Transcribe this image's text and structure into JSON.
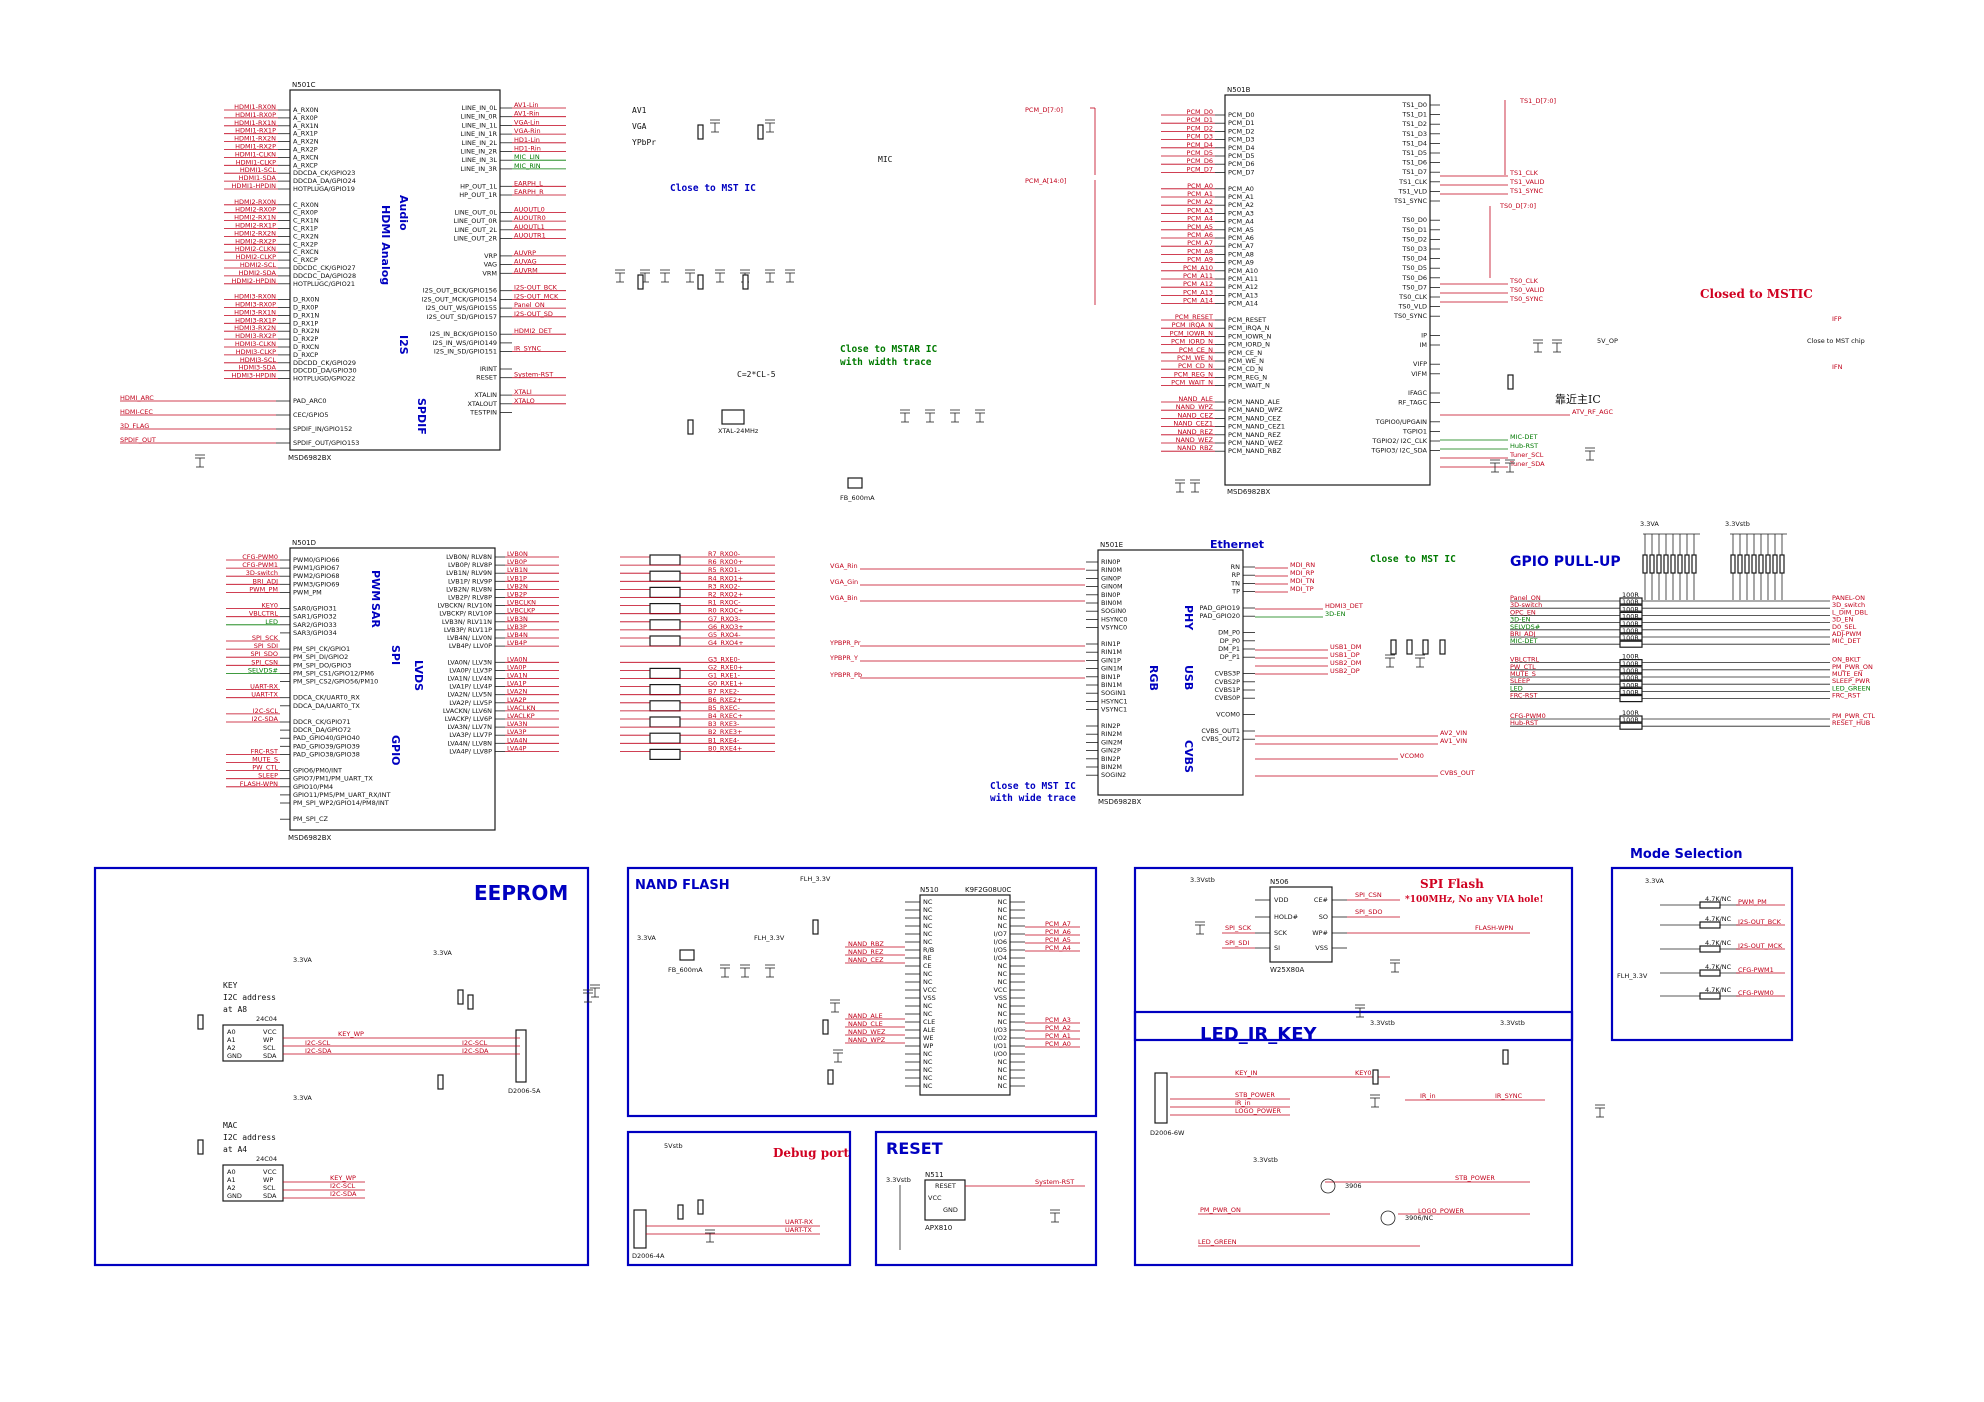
{
  "chips": {
    "n501c": {
      "ref": "N501C",
      "part": "MSD6982BX",
      "left_nets": [
        "HDMI1-RX0N",
        "HDMI1-RX0P",
        "HDMI1-RX1N",
        "HDMI1-RX1P",
        "HDMI1-RX2N",
        "HDMI1-RX2P",
        "HDMI1-CLKN",
        "HDMI1-CLKP",
        "HDMI1-SCL",
        "HDMI1-SDA",
        "HDMI1-HPDIN",
        "",
        "HDMI2-RX0N",
        "HDMI2-RX0P",
        "HDMI2-RX1N",
        "HDMI2-RX1P",
        "HDMI2-RX2N",
        "HDMI2-RX2P",
        "HDMI2-CLKN",
        "HDMI2-CLKP",
        "HDMI2-SCL",
        "HDMI2-SDA",
        "HDMI2-HPDIN",
        "",
        "HDMI3-RX0N",
        "HDMI3-RX0P",
        "HDMI3-RX1N",
        "HDMI3-RX1P",
        "HDMI3-RX2N",
        "HDMI3-RX2P",
        "HDMI3-CLKN",
        "HDMI3-CLKP",
        "HDMI3-SCL",
        "HDMI3-SDA",
        "HDMI3-HPDIN"
      ],
      "left_pins": [
        "A_RX0N",
        "A_RX0P",
        "A_RX1N",
        "A_RX1P",
        "A_RX2N",
        "A_RX2P",
        "A_RXCN",
        "A_RXCP",
        "DDCDA_CK/GPIO23",
        "DDCDA_DA/GPIO24",
        "HOTPLUGA/GPIO19",
        "",
        "C_RX0N",
        "C_RX0P",
        "C_RX1N",
        "C_RX1P",
        "C_RX2N",
        "C_RX2P",
        "C_RXCN",
        "C_RXCP",
        "DDCDC_CK/GPIO27",
        "DDCDC_DA/GPIO28",
        "HOTPLUGC/GPIO21",
        "",
        "D_RX0N",
        "D_RX0P",
        "D_RX1N",
        "D_RX1P",
        "D_RX2N",
        "D_RX2P",
        "D_RXCN",
        "D_RXCP",
        "DDCDD_CK/GPIO29",
        "DDCDD_DA/GPIO30",
        "HOTPLUGD/GPIO22"
      ],
      "bottom_pins": [
        "PAD_ARC0",
        "CEC/GPIO5",
        "SPDIF_IN/GPIO152",
        "SPDIF_OUT/GPIO153"
      ],
      "bottom_nets": [
        "HDMI_ARC",
        "HDMI-CEC",
        "3D_FLAG",
        "SPDIF_OUT"
      ],
      "right_pins": [
        "LINE_IN_0L",
        "LINE_IN_0R",
        "LINE_IN_1L",
        "LINE_IN_1R",
        "LINE_IN_2L",
        "LINE_IN_2R",
        "LINE_IN_3L",
        "LINE_IN_3R",
        "",
        "HP_OUT_1L",
        "HP_OUT_1R",
        "",
        "LINE_OUT_0L",
        "LINE_OUT_0R",
        "LINE_OUT_2L",
        "LINE_OUT_2R",
        "",
        "VRP",
        "VAG",
        "VRM",
        "",
        "I2S_OUT_BCK/GPIO156",
        "I2S_OUT_MCK/GPIO154",
        "I2S_OUT_WS/GPIO155",
        "I2S_OUT_SD/GPIO157",
        "",
        "I2S_IN_BCK/GPIO150",
        "I2S_IN_WS/GPIO149",
        "I2S_IN_SD/GPIO151",
        "",
        "IRINT",
        "RESET",
        "",
        "XTALIN",
        "XTALOUT",
        "TESTPIN"
      ],
      "right_nets": [
        "AV1-Lin",
        "AV1-Rin",
        "VGA-Lin",
        "VGA-Rin",
        "HD1-Lin",
        "HD1-Rin",
        "MIC_LIN",
        "MIC_RIN",
        "",
        "EARPH_L",
        "EARPH_R",
        "",
        "AUOUTL0",
        "AUOUTR0",
        "AUOUTL1",
        "AUOUTR1",
        "",
        "AUVRP",
        "AUVAG",
        "AUVRM",
        "",
        "I2S-OUT_BCK",
        "I2S-OUT_MCK",
        "Panel_ON",
        "I2S-OUT_SD",
        "",
        "HDMI2_DET",
        "",
        "IR_SYNC",
        "",
        "",
        "System-RST",
        "",
        "XTALI",
        "XTALO",
        ""
      ],
      "func_labels": [
        "HDMI Analog",
        "Audio",
        "I2S",
        "SPDIF"
      ],
      "side_notes": [
        "AV1",
        "VGA",
        "YPbPr",
        "MIC"
      ],
      "note": "Close to MST IC",
      "crystal_note": "C=2*CL-5",
      "crystal": "XTAL-24MHz",
      "bead": "FB_600mA"
    },
    "n501b": {
      "ref": "N501B",
      "part": "MSD6982BX",
      "left_pins": [
        "PCM_D0",
        "PCM_D1",
        "PCM_D2",
        "PCM_D3",
        "PCM_D4",
        "PCM_D5",
        "PCM_D6",
        "PCM_D7",
        "",
        "PCM_A0",
        "PCM_A1",
        "PCM_A2",
        "PCM_A3",
        "PCM_A4",
        "PCM_A5",
        "PCM_A6",
        "PCM_A7",
        "PCM_A8",
        "PCM_A9",
        "PCM_A10",
        "PCM_A11",
        "PCM_A12",
        "PCM_A13",
        "PCM_A14",
        "",
        "PCM_RESET",
        "PCM_IRQA_N",
        "PCM_IOWR_N",
        "PCM_IORD_N",
        "PCM_CE_N",
        "PCM_WE_N",
        "PCM_CD_N",
        "PCM_REG_N",
        "PCM_WAIT_N",
        "",
        "PCM_NAND_ALE",
        "PCM_NAND_WPZ",
        "PCM_NAND_CEZ",
        "PCM_NAND_CEZ1",
        "PCM_NAND_REZ",
        "PCM_NAND_WEZ",
        "PCM_NAND_RBZ"
      ],
      "left_nets": [
        "PCM_D0",
        "PCM_D1",
        "PCM_D2",
        "PCM_D3",
        "PCM_D4",
        "PCM_D5",
        "PCM_D6",
        "PCM_D7",
        "",
        "PCM_A0",
        "PCM_A1",
        "PCM_A2",
        "PCM_A3",
        "PCM_A4",
        "PCM_A5",
        "PCM_A6",
        "PCM_A7",
        "PCM_A8",
        "PCM_A9",
        "PCM_A10",
        "PCM_A11",
        "PCM_A12",
        "PCM_A13",
        "PCM_A14",
        "",
        "PCM_RESET",
        "PCM_IRQA_N",
        "PCM_IOWR_N",
        "PCM_IORD_N",
        "PCM_CE_N",
        "PCM_WE_N",
        "PCM_CD_N",
        "PCM_REG_N",
        "PCM_WAIT_N",
        "",
        "NAND_ALE",
        "NAND_WPZ",
        "NAND_CEZ",
        "NAND_CEZ1",
        "NAND_REZ",
        "NAND_WEZ",
        "NAND_RBZ"
      ],
      "right_pins": [
        "TS1_D0",
        "TS1_D1",
        "TS1_D2",
        "TS1_D3",
        "TS1_D4",
        "TS1_D5",
        "TS1_D6",
        "TS1_D7",
        "TS1_CLK",
        "TS1_VLD",
        "TS1_SYNC",
        "",
        "TS0_D0",
        "TS0_D1",
        "TS0_D2",
        "TS0_D3",
        "TS0_D4",
        "TS0_D5",
        "TS0_D6",
        "TS0_D7",
        "TS0_CLK",
        "TS0_VLD",
        "TS0_SYNC",
        "",
        "IP",
        "IM",
        "",
        "VIFP",
        "VIFM",
        "",
        "IFAGC",
        "RF_TAGC",
        "",
        "TGPIO0/UPGAIN",
        "TGPIO1",
        "TGPIO2/ I2C_CLK",
        "TGPIO3/ I2C_SDA"
      ],
      "right_nets": [
        "TS1_CLK",
        "TS1_VALID",
        "TS1_SYNC",
        "TS0_CLK",
        "TS0_VALID",
        "TS0_SYNC",
        "MIC-DET",
        "Hub-RST",
        "Tuner_SCL",
        "Tuner_SDA",
        "ATV_RF_AGC"
      ],
      "bus_labels": [
        "PCM_D[7:0]",
        "PCM_A[14:0]",
        "TS1_D[7:0]",
        "TS0_D[7:0]"
      ],
      "note_chinese": "靠近主IC",
      "closed_note": "Closed to MSTIC",
      "if_nets": [
        "IFP",
        "IFN"
      ],
      "if_note": "Close to MST chip",
      "vcc": "5V_OP"
    },
    "n501d": {
      "ref": "N501D",
      "part": "MSD6982BX",
      "left_nets": [
        "CFG-PWM0",
        "CFG-PWM1",
        "3D-switch",
        "BRI_ADJ",
        "PWM_PM",
        "",
        "KEY0",
        "VBLCTRL",
        "LED",
        "",
        "SPI_SCK",
        "SPI_SDI",
        "SPI_SDO",
        "SPI_CSN",
        "SELVDS#",
        "",
        "UART-RX",
        "UART-TX",
        "",
        "I2C-SCL",
        "I2C-SDA",
        "",
        "",
        "",
        "FRC-RST",
        "MUTE_S",
        "PW_CTL",
        "SLEEP",
        "FLASH-WPN"
      ],
      "left_pins": [
        "PWM0/GPIO66",
        "PWM1/GPIO67",
        "PWM2/GPIO68",
        "PWM3/GPIO69",
        "PWM_PM",
        "",
        "SAR0/GPIO31",
        "SAR1/GPIO32",
        "SAR2/GPIO33",
        "SAR3/GPIO34",
        "",
        "PM_SPI_CK/GPIO1",
        "PM_SPI_DI/GPIO2",
        "PM_SPI_DO/GPIO3",
        "PM_SPI_CS1/GPIO12/PM6",
        "PM_SPI_CS2/GPIO56/PM10",
        "",
        "DDCA_CK/UART0_RX",
        "DDCA_DA/UART0_TX",
        "",
        "DDCR_CK/GPIO71",
        "DDCR_DA/GPIO72",
        "PAD_GPIO40/GPIO40",
        "PAD_GPIO39/GPIO39",
        "PAD_GPIO38/GPIO38",
        "",
        "GPIO6/PM0/INT",
        "GPIO7/PM1/PM_UART_TX",
        "GPIO10/PM4",
        "GPIO11/PM5/PM_UART_RX/INT",
        "PM_SPI_WP2/GPIO14/PM8/INT",
        "",
        "PM_SPI_CZ"
      ],
      "right_pins": [
        "LVB0N/ RLV8N",
        "LVB0P/ RLV8P",
        "LVB1N/ RLV9N",
        "LVB1P/ RLV9P",
        "LVB2N/ RLV8N",
        "LVB2P/ RLV8P",
        "LVBCKN/ RLV10N",
        "LVBCKP/ RLV10P",
        "LVB3N/ RLV11N",
        "LVB3P/ RLV11P",
        "LVB4N/ LLV0N",
        "LVB4P/ LLV0P",
        "",
        "LVA0N/ LLV3N",
        "LVA0P/ LLV3P",
        "LVA1N/ LLV4N",
        "LVA1P/ LLV4P",
        "LVA2N/ LLV5N",
        "LVA2P/ LLV5P",
        "LVACKN/ LLV6N",
        "LVACKP/ LLV6P",
        "LVA3N/ LLV7N",
        "LVA3P/ LLV7P",
        "LVA4N/ LLV8N",
        "LVA4P/ LLV8P"
      ],
      "right_nets": [
        "LVB0N",
        "LVB0P",
        "LVB1N",
        "LVB1P",
        "LVB2N",
        "LVB2P",
        "LVBCLKN",
        "LVBCLKP",
        "LVB3N",
        "LVB3P",
        "LVB4N",
        "LVB4P",
        "",
        "LVA0N",
        "LVA0P",
        "LVA1N",
        "LVA1P",
        "LVA2N",
        "LVA2P",
        "LVACLKN",
        "LVACLKP",
        "LVA3N",
        "LVA3P",
        "LVA4N",
        "LVA4P"
      ],
      "rx_nets": [
        "R7_RXO0-",
        "R6_RXO0+",
        "R5_RXO1-",
        "R4_RXO1+",
        "R3_RXO2-",
        "R2_RXO2+",
        "R1_RXOC-",
        "R0_RXOC+",
        "G7_RXO3-",
        "G6_RXO3+",
        "G5_RXO4-",
        "G4_RXO4+",
        "",
        "G3_RXE0-",
        "G2_RXE0+",
        "G1_RXE1-",
        "G0_RXE1+",
        "B7_RXE2-",
        "B6_RXE2+",
        "B5_RXEC-",
        "B4_RXEC+",
        "B3_RXE3-",
        "B2_RXE3+",
        "B1_RXE4-",
        "B0_RXE4+"
      ],
      "func_labels": [
        "PWM",
        "SAR",
        "SPI",
        "GPIO",
        "LVDS"
      ]
    },
    "n501e": {
      "ref": "N501E",
      "part": "MSD6982BX",
      "left_nets": [
        "VGA_Rin",
        "VGA_Gin",
        "VGA_Bin",
        "",
        "YPBPR_Pr",
        "YPBPR_Y",
        "YPBPR_Pb"
      ],
      "left_pins": [
        "RIN0P",
        "RIN0M",
        "GIN0P",
        "GIN0M",
        "BIN0P",
        "BIN0M",
        "SOGIN0",
        "HSYNC0",
        "VSYNC0",
        "",
        "RIN1P",
        "RIN1M",
        "GIN1P",
        "GIN1M",
        "BIN1P",
        "BIN1M",
        "SOGIN1",
        "HSYNC1",
        "VSYNC1",
        "",
        "RIN2P",
        "RIN2M",
        "GIN2M",
        "GIN2P",
        "BIN2P",
        "BIN2M",
        "SOGIN2"
      ],
      "right_pins": [
        "RN",
        "RP",
        "TN",
        "TP",
        "",
        "PAD_GPIO19",
        "PAD_GPIO20",
        "",
        "DM_P0",
        "DP_P0",
        "DM_P1",
        "DP_P1",
        "",
        "CVBS3P",
        "CVBS2P",
        "CVBS1P",
        "CVBS0P",
        "",
        "VCOM0",
        "",
        "CVBS_OUT1",
        "CVBS_OUT2"
      ],
      "right_nets": [
        "MDI_RN",
        "MDI_RP",
        "MDI_TN",
        "MDI_TP",
        "HDMI3_DET",
        "3D-EN",
        "USB1_DM",
        "USB1_DP",
        "USB2_DM",
        "USB2_DP",
        "AV2_VIN",
        "AV1_VIN",
        "VCOM0",
        "CVBS_OUT"
      ],
      "func_labels": [
        "Ethernet",
        "PHY",
        "USB",
        "CVBS",
        "RGB"
      ],
      "notes": [
        "Close to MST IC",
        "Close to MST IC with wide trace"
      ]
    }
  },
  "gpio_pullup": {
    "title": "GPIO PULL-UP",
    "vcc": [
      "3.3VA",
      "3.3Vstb"
    ],
    "signals": [
      "Panel_ON",
      "3D-switch",
      "OPC_EN",
      "3D-EN",
      "SELVDS#",
      "BRI_ADJ",
      "MIC-DET",
      "",
      "VBLCTRL",
      "PW_CTL",
      "MUTE_S",
      "SLEEP",
      "LED",
      "FRC-RST",
      "",
      "CFG-PWM0",
      "Hub-RST"
    ],
    "outputs": [
      "PANEL-ON",
      "3D_switch",
      "L_DIM_DBL",
      "3D_EN",
      "D0_SEL",
      "ADJ-PWM",
      "MIC_DET",
      "",
      "ON_BKLT",
      "PM_PWR_ON",
      "MUTE_EN",
      "SLEEP_PWR",
      "LED_GREEN",
      "FRC_RST",
      "",
      "PM_PWR_CTL",
      "RESET_HUB"
    ],
    "resistor": "100R"
  },
  "sections": {
    "eeprom": {
      "title": "EEPROM",
      "chip1": "24C04",
      "addr1": [
        "KEY",
        "I2C address",
        "at A8"
      ],
      "chip2": "24C04",
      "addr2": [
        "MAC",
        "I2C address",
        "at A4"
      ],
      "nets": [
        "KEY_WP",
        "I2C-SCL",
        "I2C-SDA",
        "KEY_WP",
        "I2C-SCL",
        "I2C-SDA"
      ],
      "connector": "D2006-5A",
      "vcc": "3.3VA"
    },
    "nand": {
      "title": "NAND FLASH",
      "chip": "K9F2G08U0C",
      "ref": "N510",
      "vcc": [
        "FLH_3.3V",
        "3.3VA",
        "FLH_3.3V"
      ],
      "nets": [
        "NAND_RBZ",
        "NAND_REZ",
        "NAND_CEZ",
        "NAND_ALE",
        "NAND_CLE",
        "NAND_WEZ",
        "NAND_WPZ",
        "PCM_A7",
        "PCM_A6",
        "PCM_A5",
        "PCM_A4",
        "PCM_A3",
        "PCM_A2",
        "PCM_A1",
        "PCM_A0"
      ],
      "bead": "FB_600mA"
    },
    "spi": {
      "title": "SPI Flash",
      "note": "*100MHz, No any VIA hole!",
      "chip": "W25X80A",
      "ref": "N506",
      "pins": [
        "VDD",
        "HOLD#",
        "SCK",
        "SI",
        "CE#",
        "SO",
        "WP#",
        "VSS"
      ],
      "nets": [
        "SPI_CSN",
        "SPI_SDO",
        "SPI_SCK",
        "SPI_SDI",
        "FLASH-WPN"
      ],
      "vcc": "3.3Vstb"
    },
    "mode": {
      "title": "Mode Selection",
      "vcc": [
        "3.3VA",
        "FLH_3.3V"
      ],
      "nets": [
        "PWM_PM",
        "I2S-OUT_BCK",
        "I2S-OUT_MCK",
        "CFG-PWM1",
        "CFG-PWM0"
      ],
      "resistor": "4.7K/NC"
    },
    "led_ir": {
      "title": "LED_IR_KEY",
      "connector": "D2006-6W",
      "nets": [
        "KEY_IN",
        "STB_POWER",
        "IR_in",
        "LOGO_POWER",
        "KEY0",
        "IR_in",
        "IR_SYNC",
        "STB_POWER",
        "PM_PWR_ON",
        "LOGO_POWER",
        "LED_GREEN"
      ],
      "vcc": "3.3Vstb",
      "transistors": [
        "3906",
        "3906/NC"
      ]
    },
    "debug": {
      "title": "Debug port",
      "connector": "D2006-4A",
      "nets": [
        "UART-RX",
        "UART-TX"
      ],
      "vcc": "5Vstb"
    },
    "reset": {
      "title": "RESET",
      "chip": "APX810",
      "ref": "N511",
      "pins": [
        "VCC",
        "RESET",
        "GND"
      ],
      "nets": [
        "System-RST"
      ],
      "vcc": "3.3Vstb"
    }
  },
  "colors": {
    "frame": "#0000c0",
    "net": "#c0001a",
    "greennet": "#007a00",
    "wire": "#222222"
  }
}
